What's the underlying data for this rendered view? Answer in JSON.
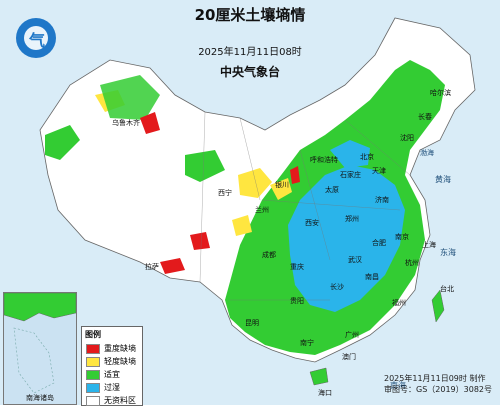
{
  "header": {
    "title": "20厘米土壤墒情",
    "time": "2025年11月11日08时",
    "agency": "中央气象台"
  },
  "logo": {
    "name": "cma-logo-icon",
    "glyph": "气"
  },
  "legend": {
    "title": "图例",
    "items": [
      {
        "label": "重度缺墒",
        "color": "#e31a1c"
      },
      {
        "label": "轻度缺墒",
        "color": "#ffe640"
      },
      {
        "label": "适宜",
        "color": "#33cc33"
      },
      {
        "label": "过湿",
        "color": "#2ab4ea"
      },
      {
        "label": "无资料区",
        "color": "#ffffff"
      }
    ]
  },
  "inset": {
    "label": "南海诸岛"
  },
  "credit": {
    "line1": "2025年11月11日09时 制作",
    "line2": "审图号：GS（2019）3082号"
  },
  "sea_labels": [
    "黄海",
    "东海",
    "南海",
    "渤海"
  ],
  "cities": [
    "哈尔滨",
    "长春",
    "沈阳",
    "北京",
    "天津",
    "济南",
    "郑州",
    "西安",
    "兰州",
    "银川",
    "太原",
    "石家庄",
    "上海",
    "南京",
    "合肥",
    "武汉",
    "成都",
    "重庆",
    "贵阳",
    "昆明",
    "长沙",
    "南昌",
    "杭州",
    "福州",
    "广州",
    "南宁",
    "海口",
    "台北",
    "拉萨",
    "西宁",
    "乌鲁木齐",
    "呼和浩特",
    "澳门"
  ]
}
